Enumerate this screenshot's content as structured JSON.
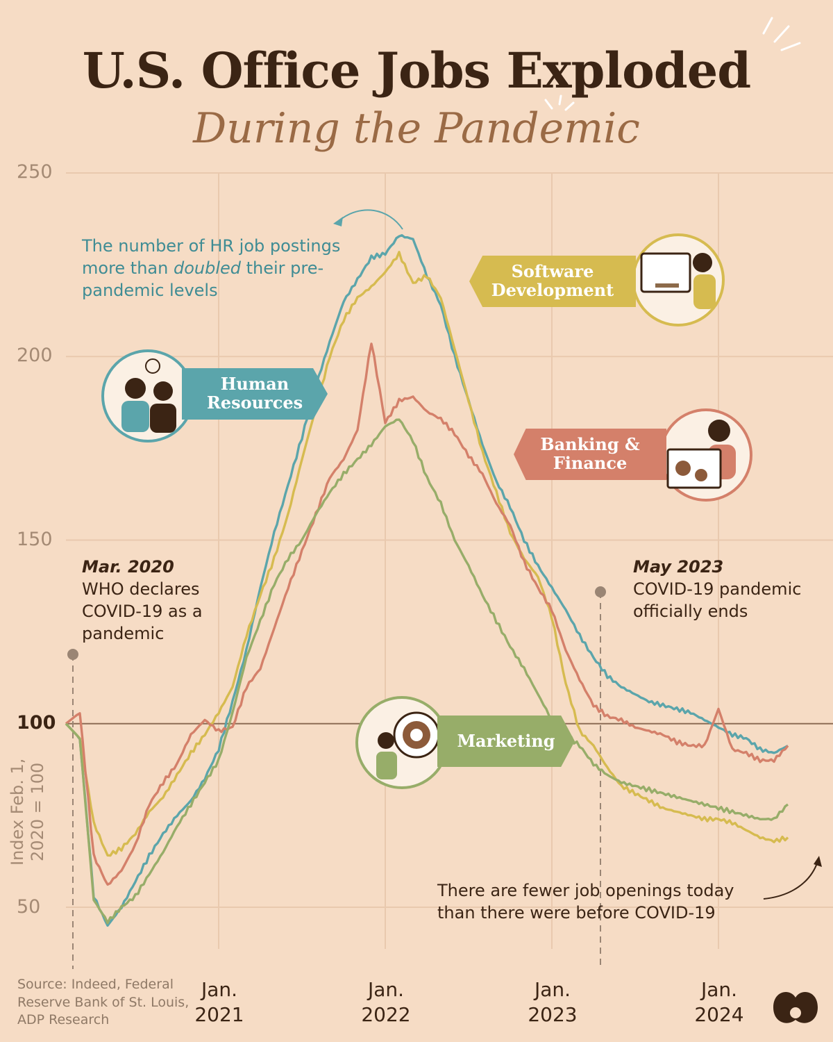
{
  "title": "U.S. Office Jobs Exploded",
  "subtitle": "During the Pandemic",
  "source": "Source: Indeed, Federal Reserve Bank of St. Louis, ADP Research",
  "y_axis_label": "Index Feb. 1, 2020 = 100",
  "annotations": {
    "hr_doubled": {
      "prefix": "The number of HR job postings more than ",
      "emphasis": "doubled",
      "suffix": " their pre-pandemic levels"
    },
    "march_2020": {
      "date": "Mar. 2020",
      "text": "WHO declares COVID-19 as a pandemic"
    },
    "may_2023": {
      "date": "May 2023",
      "text": "COVID-19 pandemic officially ends"
    },
    "today": "There are fewer job openings today than there were before COVID-19"
  },
  "legend_tags": {
    "hr": "Human Resources",
    "software": "Software Development",
    "banking": "Banking & Finance",
    "marketing": "Marketing"
  },
  "icons": [
    "hr-illustration-icon",
    "software-illustration-icon",
    "banking-illustration-icon",
    "marketing-illustration-icon",
    "brand-logo-icon"
  ],
  "colors": {
    "background": "#f6dcc5",
    "hr": "#5ba5ab",
    "software": "#d6bb50",
    "banking": "#d4806a",
    "marketing": "#97ad69",
    "text": "#3b2414"
  },
  "chart_data": {
    "type": "line",
    "ylabel": "Index Feb. 1, 2020 = 100",
    "ylim": [
      50,
      250
    ],
    "yticks": [
      "250",
      "200",
      "150",
      "100",
      "50"
    ],
    "xticks": [
      {
        "x": "2021-01",
        "month": "Jan.",
        "year": "2021"
      },
      {
        "x": "2022-01",
        "month": "Jan.",
        "year": "2022"
      },
      {
        "x": "2023-01",
        "month": "Jan.",
        "year": "2023"
      },
      {
        "x": "2024-01",
        "month": "Jan.",
        "year": "2024"
      }
    ],
    "xlim": [
      "2020-02",
      "2024-06"
    ],
    "reference_line": 100,
    "event_lines": [
      "2020-03",
      "2023-05"
    ],
    "grid": true,
    "legend": "inline labels",
    "series": [
      {
        "name": "Human Resources",
        "color": "#5ba5ab",
        "points": [
          [
            "2020-02",
            100
          ],
          [
            "2020-03",
            96
          ],
          [
            "2020-04",
            53
          ],
          [
            "2020-05",
            45
          ],
          [
            "2020-06",
            50
          ],
          [
            "2020-07",
            57
          ],
          [
            "2020-08",
            64
          ],
          [
            "2020-09",
            70
          ],
          [
            "2020-10",
            75
          ],
          [
            "2020-11",
            79
          ],
          [
            "2020-12",
            85
          ],
          [
            "2021-01",
            93
          ],
          [
            "2021-02",
            106
          ],
          [
            "2021-03",
            120
          ],
          [
            "2021-04",
            137
          ],
          [
            "2021-05",
            152
          ],
          [
            "2021-06",
            165
          ],
          [
            "2021-07",
            178
          ],
          [
            "2021-08",
            192
          ],
          [
            "2021-09",
            204
          ],
          [
            "2021-10",
            215
          ],
          [
            "2021-11",
            221
          ],
          [
            "2021-12",
            227
          ],
          [
            "2022-01",
            228
          ],
          [
            "2022-02",
            233
          ],
          [
            "2022-03",
            232
          ],
          [
            "2022-04",
            222
          ],
          [
            "2022-05",
            214
          ],
          [
            "2022-06",
            200
          ],
          [
            "2022-07",
            188
          ],
          [
            "2022-08",
            176
          ],
          [
            "2022-09",
            166
          ],
          [
            "2022-10",
            159
          ],
          [
            "2022-11",
            150
          ],
          [
            "2022-12",
            143
          ],
          [
            "2023-01",
            137
          ],
          [
            "2023-02",
            131
          ],
          [
            "2023-03",
            124
          ],
          [
            "2023-04",
            118
          ],
          [
            "2023-05",
            113
          ],
          [
            "2023-06",
            110
          ],
          [
            "2023-07",
            108
          ],
          [
            "2023-08",
            106
          ],
          [
            "2023-09",
            105
          ],
          [
            "2023-10",
            104
          ],
          [
            "2023-11",
            103
          ],
          [
            "2023-12",
            101
          ],
          [
            "2024-01",
            99
          ],
          [
            "2024-02",
            97
          ],
          [
            "2024-03",
            96
          ],
          [
            "2024-04",
            93
          ],
          [
            "2024-05",
            92
          ],
          [
            "2024-06",
            94
          ]
        ]
      },
      {
        "name": "Software Development",
        "color": "#d6bb50",
        "points": [
          [
            "2020-02",
            100
          ],
          [
            "2020-03",
            96
          ],
          [
            "2020-04",
            73
          ],
          [
            "2020-05",
            64
          ],
          [
            "2020-06",
            66
          ],
          [
            "2020-07",
            70
          ],
          [
            "2020-08",
            76
          ],
          [
            "2020-09",
            80
          ],
          [
            "2020-10",
            86
          ],
          [
            "2020-11",
            92
          ],
          [
            "2020-12",
            97
          ],
          [
            "2021-01",
            103
          ],
          [
            "2021-02",
            110
          ],
          [
            "2021-03",
            124
          ],
          [
            "2021-04",
            135
          ],
          [
            "2021-05",
            145
          ],
          [
            "2021-06",
            157
          ],
          [
            "2021-07",
            172
          ],
          [
            "2021-08",
            186
          ],
          [
            "2021-09",
            200
          ],
          [
            "2021-10",
            210
          ],
          [
            "2021-11",
            216
          ],
          [
            "2021-12",
            219
          ],
          [
            "2022-01",
            223
          ],
          [
            "2022-02",
            228
          ],
          [
            "2022-03",
            220
          ],
          [
            "2022-04",
            222
          ],
          [
            "2022-05",
            216
          ],
          [
            "2022-06",
            202
          ],
          [
            "2022-07",
            188
          ],
          [
            "2022-08",
            174
          ],
          [
            "2022-09",
            163
          ],
          [
            "2022-10",
            152
          ],
          [
            "2022-11",
            145
          ],
          [
            "2022-12",
            140
          ],
          [
            "2023-01",
            129
          ],
          [
            "2023-02",
            111
          ],
          [
            "2023-03",
            98
          ],
          [
            "2023-04",
            94
          ],
          [
            "2023-05",
            88
          ],
          [
            "2023-06",
            83
          ],
          [
            "2023-07",
            81
          ],
          [
            "2023-08",
            79
          ],
          [
            "2023-09",
            77
          ],
          [
            "2023-10",
            76
          ],
          [
            "2023-11",
            75
          ],
          [
            "2023-12",
            74
          ],
          [
            "2024-01",
            74
          ],
          [
            "2024-02",
            73
          ],
          [
            "2024-03",
            71
          ],
          [
            "2024-04",
            69
          ],
          [
            "2024-05",
            68
          ],
          [
            "2024-06",
            69
          ]
        ]
      },
      {
        "name": "Banking & Finance",
        "color": "#d4806a",
        "points": [
          [
            "2020-02",
            100
          ],
          [
            "2020-03",
            103
          ],
          [
            "2020-04",
            64
          ],
          [
            "2020-05",
            56
          ],
          [
            "2020-06",
            60
          ],
          [
            "2020-07",
            67
          ],
          [
            "2020-08",
            78
          ],
          [
            "2020-09",
            84
          ],
          [
            "2020-10",
            89
          ],
          [
            "2020-11",
            97
          ],
          [
            "2020-12",
            101
          ],
          [
            "2021-01",
            98
          ],
          [
            "2021-02",
            99
          ],
          [
            "2021-03",
            110
          ],
          [
            "2021-04",
            115
          ],
          [
            "2021-05",
            126
          ],
          [
            "2021-06",
            137
          ],
          [
            "2021-07",
            147
          ],
          [
            "2021-08",
            157
          ],
          [
            "2021-09",
            167
          ],
          [
            "2021-10",
            172
          ],
          [
            "2021-11",
            180
          ],
          [
            "2021-12",
            204
          ],
          [
            "2022-01",
            182
          ],
          [
            "2022-02",
            188
          ],
          [
            "2022-03",
            189
          ],
          [
            "2022-04",
            185
          ],
          [
            "2022-05",
            183
          ],
          [
            "2022-06",
            179
          ],
          [
            "2022-07",
            173
          ],
          [
            "2022-08",
            168
          ],
          [
            "2022-09",
            160
          ],
          [
            "2022-10",
            154
          ],
          [
            "2022-11",
            144
          ],
          [
            "2022-12",
            137
          ],
          [
            "2023-01",
            131
          ],
          [
            "2023-02",
            120
          ],
          [
            "2023-03",
            112
          ],
          [
            "2023-04",
            105
          ],
          [
            "2023-05",
            102
          ],
          [
            "2023-06",
            101
          ],
          [
            "2023-07",
            99
          ],
          [
            "2023-08",
            98
          ],
          [
            "2023-09",
            97
          ],
          [
            "2023-10",
            95
          ],
          [
            "2023-11",
            94
          ],
          [
            "2023-12",
            94
          ],
          [
            "2024-01",
            104
          ],
          [
            "2024-02",
            93
          ],
          [
            "2024-03",
            92
          ],
          [
            "2024-04",
            90
          ],
          [
            "2024-05",
            90
          ],
          [
            "2024-06",
            94
          ]
        ]
      },
      {
        "name": "Marketing",
        "color": "#97ad69",
        "points": [
          [
            "2020-02",
            100
          ],
          [
            "2020-03",
            96
          ],
          [
            "2020-04",
            52
          ],
          [
            "2020-05",
            46
          ],
          [
            "2020-06",
            50
          ],
          [
            "2020-07",
            53
          ],
          [
            "2020-08",
            59
          ],
          [
            "2020-09",
            65
          ],
          [
            "2020-10",
            72
          ],
          [
            "2020-11",
            78
          ],
          [
            "2020-12",
            84
          ],
          [
            "2021-01",
            90
          ],
          [
            "2021-02",
            103
          ],
          [
            "2021-03",
            118
          ],
          [
            "2021-04",
            128
          ],
          [
            "2021-05",
            138
          ],
          [
            "2021-06",
            145
          ],
          [
            "2021-07",
            150
          ],
          [
            "2021-08",
            157
          ],
          [
            "2021-09",
            163
          ],
          [
            "2021-10",
            168
          ],
          [
            "2021-11",
            172
          ],
          [
            "2021-12",
            176
          ],
          [
            "2022-01",
            181
          ],
          [
            "2022-02",
            183
          ],
          [
            "2022-03",
            177
          ],
          [
            "2022-04",
            167
          ],
          [
            "2022-05",
            160
          ],
          [
            "2022-06",
            150
          ],
          [
            "2022-07",
            143
          ],
          [
            "2022-08",
            135
          ],
          [
            "2022-09",
            128
          ],
          [
            "2022-10",
            121
          ],
          [
            "2022-11",
            115
          ],
          [
            "2022-12",
            108
          ],
          [
            "2023-01",
            101
          ],
          [
            "2023-02",
            97
          ],
          [
            "2023-03",
            94
          ],
          [
            "2023-04",
            89
          ],
          [
            "2023-05",
            86
          ],
          [
            "2023-06",
            84
          ],
          [
            "2023-07",
            83
          ],
          [
            "2023-08",
            82
          ],
          [
            "2023-09",
            81
          ],
          [
            "2023-10",
            80
          ],
          [
            "2023-11",
            79
          ],
          [
            "2023-12",
            78
          ],
          [
            "2024-01",
            77
          ],
          [
            "2024-02",
            76
          ],
          [
            "2024-03",
            75
          ],
          [
            "2024-04",
            74
          ],
          [
            "2024-05",
            74
          ],
          [
            "2024-06",
            78
          ]
        ]
      }
    ]
  }
}
